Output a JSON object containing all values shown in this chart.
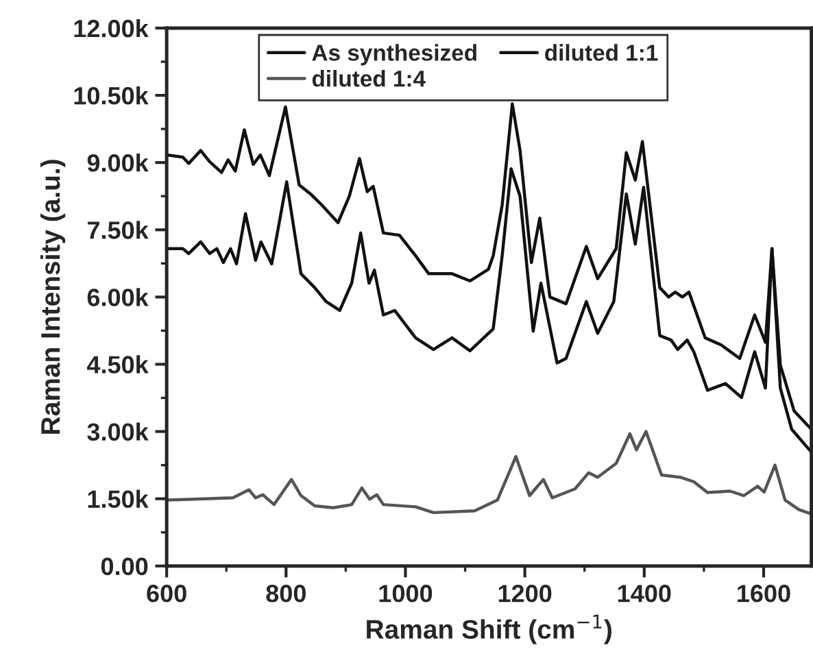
{
  "chart_data": {
    "type": "line",
    "xlabel": "Raman Shift (cm$^{−1}$)",
    "ylabel": "Raman Intensity (a.u.)",
    "xlim": [
      600,
      1680
    ],
    "xticks": [
      600,
      800,
      1000,
      1200,
      1400,
      1600
    ],
    "ylim": [
      0,
      12000
    ],
    "yticks": [
      {
        "value": 0,
        "label": "0.00"
      },
      {
        "value": 1500,
        "label": "1.50k"
      },
      {
        "value": 3000,
        "label": "3.00k"
      },
      {
        "value": 4500,
        "label": "4.50k"
      },
      {
        "value": 6000,
        "label": "6.00k"
      },
      {
        "value": 7500,
        "label": "7.50k"
      },
      {
        "value": 9000,
        "label": "9.00k"
      },
      {
        "value": 10500,
        "label": "10.50k"
      },
      {
        "value": 12000,
        "label": "12.00k"
      }
    ],
    "grid": false,
    "legend": "top",
    "marker": "none",
    "line_style": "solid",
    "series": [
      {
        "name": "As synthesized",
        "color": "#111111",
        "x": [
          600,
          627,
          637,
          657,
          672,
          692,
          703,
          715,
          730,
          745,
          757,
          772,
          799,
          822,
          841,
          860,
          887,
          906,
          923,
          936,
          946,
          963,
          990,
          1017,
          1039,
          1078,
          1108,
          1139,
          1147,
          1162,
          1179,
          1192,
          1211,
          1225,
          1242,
          1269,
          1303,
          1322,
          1353,
          1370,
          1385,
          1397,
          1426,
          1441,
          1452,
          1464,
          1475,
          1502,
          1529,
          1560,
          1585,
          1603,
          1614,
          1628,
          1651,
          1680
        ],
        "values": [
          9170,
          9120,
          8980,
          9270,
          9020,
          8780,
          9060,
          8810,
          9730,
          8960,
          9170,
          8710,
          10240,
          8500,
          8300,
          8050,
          7660,
          8250,
          9090,
          8350,
          8470,
          7430,
          7380,
          6920,
          6520,
          6520,
          6360,
          6620,
          6920,
          8050,
          10310,
          9270,
          6770,
          7760,
          6000,
          5850,
          7130,
          6410,
          7080,
          9220,
          8610,
          9470,
          6210,
          6000,
          6110,
          6000,
          6110,
          5090,
          4930,
          4630,
          5600,
          4990,
          7080,
          4480,
          3460,
          3050
        ]
      },
      {
        "name": "diluted 1:1",
        "color": "#111111",
        "x": [
          600,
          627,
          637,
          657,
          672,
          684,
          695,
          707,
          717,
          732,
          749,
          758,
          776,
          801,
          825,
          848,
          867,
          890,
          910,
          925,
          939,
          948,
          963,
          982,
          1017,
          1047,
          1078,
          1108,
          1139,
          1147,
          1162,
          1177,
          1192,
          1214,
          1227,
          1254,
          1269,
          1303,
          1322,
          1349,
          1370,
          1385,
          1399,
          1426,
          1445,
          1456,
          1472,
          1483,
          1506,
          1536,
          1563,
          1585,
          1603,
          1614,
          1628,
          1647,
          1680
        ],
        "values": [
          7080,
          7080,
          6970,
          7230,
          6970,
          7080,
          6770,
          7080,
          6740,
          7860,
          6820,
          7230,
          6740,
          8570,
          6520,
          6210,
          5900,
          5700,
          6310,
          7430,
          6310,
          6600,
          5600,
          5700,
          5090,
          4830,
          5090,
          4800,
          5190,
          5290,
          6920,
          8860,
          8250,
          5240,
          6310,
          4530,
          4630,
          5900,
          5190,
          5900,
          8300,
          7180,
          8450,
          5140,
          5040,
          4830,
          5040,
          4780,
          3920,
          4070,
          3760,
          4780,
          3970,
          7080,
          3970,
          3050,
          2540
        ]
      },
      {
        "name": "diluted 1:4",
        "color": "#555555",
        "x": [
          600,
          711,
          738,
          749,
          761,
          780,
          809,
          825,
          848,
          879,
          910,
          927,
          940,
          952,
          963,
          1017,
          1047,
          1116,
          1154,
          1185,
          1208,
          1231,
          1246,
          1284,
          1307,
          1322,
          1353,
          1376,
          1387,
          1403,
          1429,
          1460,
          1483,
          1506,
          1544,
          1567,
          1590,
          1601,
          1619,
          1636,
          1659,
          1680
        ],
        "values": [
          1470,
          1520,
          1700,
          1520,
          1590,
          1370,
          1930,
          1570,
          1340,
          1300,
          1370,
          1740,
          1490,
          1590,
          1370,
          1320,
          1190,
          1230,
          1470,
          2440,
          1570,
          1930,
          1520,
          1720,
          2080,
          1980,
          2290,
          2950,
          2590,
          3000,
          2030,
          1980,
          1880,
          1640,
          1670,
          1570,
          1780,
          1650,
          2250,
          1470,
          1260,
          1160
        ]
      }
    ]
  }
}
